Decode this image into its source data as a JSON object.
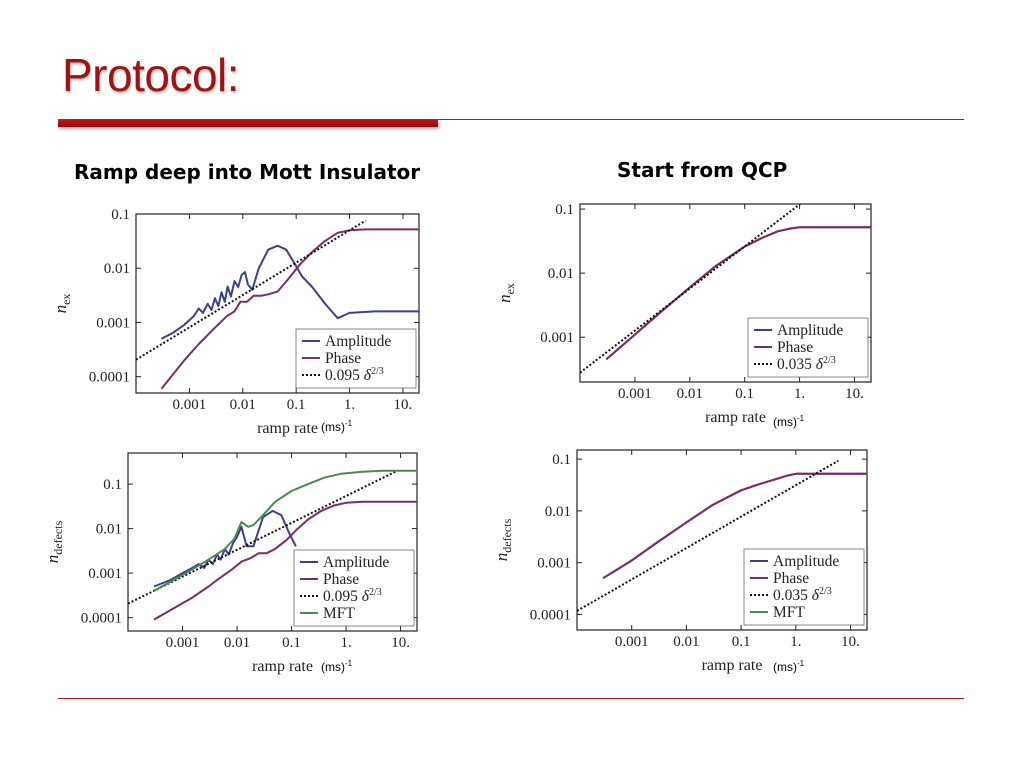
{
  "slide": {
    "title": "Protocol:"
  },
  "columns": [
    {
      "heading": "Ramp deep into Mott Insulator"
    },
    {
      "heading": "Start from QCP"
    }
  ],
  "unit_label": {
    "base": "(ms)",
    "exp": "-1"
  },
  "colors": {
    "amplitude": "#3c3f8e",
    "phase": "#7a2c64",
    "mft": "#4a8a52",
    "fit": "#111111",
    "accent": "#9b1515"
  },
  "chart_data": [
    {
      "id": "ramp-deep-nex",
      "type": "line",
      "xlabel": "ramp rate",
      "ylabel": "n_ex",
      "ylabel_main": "n",
      "ylabel_sub": "ex",
      "xscale": "log",
      "yscale": "log",
      "xlim": [
        0.0001,
        20
      ],
      "ylim": [
        5e-05,
        0.1
      ],
      "xticks": [
        0.001,
        0.01,
        0.1,
        1,
        10
      ],
      "xticklabels": [
        "0.001",
        "0.01",
        "0.1",
        "1.",
        "10."
      ],
      "yticks": [
        0.0001,
        0.001,
        0.01,
        0.1
      ],
      "yticklabels": [
        "0.0001",
        "0.001",
        "0.01",
        "0.1"
      ],
      "legend_position": "bottom-right",
      "series": [
        {
          "name": "Amplitude",
          "color_key": "amplitude",
          "x": [
            0.0003,
            0.0005,
            0.0008,
            0.0012,
            0.0015,
            0.0018,
            0.0022,
            0.0026,
            0.003,
            0.0035,
            0.004,
            0.0046,
            0.0052,
            0.006,
            0.007,
            0.0082,
            0.0095,
            0.011,
            0.0125,
            0.015,
            0.02,
            0.03,
            0.045,
            0.065,
            0.09,
            0.13,
            0.2,
            0.35,
            0.6,
            1.0,
            3,
            20
          ],
          "y": [
            0.0005,
            0.00065,
            0.0009,
            0.0013,
            0.0018,
            0.0015,
            0.0022,
            0.0017,
            0.0028,
            0.002,
            0.0036,
            0.0024,
            0.0046,
            0.003,
            0.0058,
            0.0045,
            0.0075,
            0.0085,
            0.005,
            0.004,
            0.01,
            0.022,
            0.026,
            0.022,
            0.013,
            0.007,
            0.0045,
            0.0022,
            0.0012,
            0.0015,
            0.0016,
            0.0016
          ]
        },
        {
          "name": "Phase",
          "color_key": "phase",
          "x": [
            0.0003,
            0.0008,
            0.0015,
            0.003,
            0.005,
            0.007,
            0.009,
            0.012,
            0.016,
            0.022,
            0.03,
            0.045,
            0.07,
            0.12,
            0.2,
            0.35,
            0.6,
            1,
            2,
            5,
            20
          ],
          "y": [
            6e-05,
            0.0002,
            0.0004,
            0.0008,
            0.0013,
            0.0016,
            0.0024,
            0.0024,
            0.0031,
            0.0031,
            0.0033,
            0.0037,
            0.0062,
            0.012,
            0.02,
            0.032,
            0.045,
            0.05,
            0.052,
            0.052,
            0.052
          ]
        },
        {
          "name": "0.095 δ^2/3",
          "label_num": "0.095 ",
          "label_var": "δ",
          "label_sup": "2/3",
          "color_key": "fit",
          "dash": "2,2",
          "x": [
            0.0001,
            2
          ],
          "y": [
            0.000206,
            0.0754
          ]
        }
      ]
    },
    {
      "id": "start-qcp-nex",
      "type": "line",
      "xlabel": "ramp rate",
      "ylabel": "n_ex",
      "ylabel_main": "n",
      "ylabel_sub": "ex",
      "xscale": "log",
      "yscale": "log",
      "xlim": [
        0.0001,
        20
      ],
      "ylim": [
        0.0002,
        0.12
      ],
      "xticks": [
        0.001,
        0.01,
        0.1,
        1,
        10
      ],
      "xticklabels": [
        "0.001",
        "0.01",
        "0.1",
        "1.",
        "10."
      ],
      "yticks": [
        0.001,
        0.01,
        0.1
      ],
      "yticklabels": [
        "0.001",
        "0.01",
        "0.1"
      ],
      "legend_position": "bottom-right",
      "series": [
        {
          "name": "Amplitude",
          "color_key": "amplitude",
          "x": [
            0.0003,
            0.001,
            0.003,
            0.01,
            0.03,
            0.1,
            0.2,
            0.4,
            0.7,
            1,
            2,
            20
          ],
          "y": [
            0.00045,
            0.0011,
            0.0025,
            0.006,
            0.013,
            0.026,
            0.035,
            0.045,
            0.05,
            0.052,
            0.052,
            0.052
          ]
        },
        {
          "name": "Phase",
          "color_key": "phase",
          "x": [
            0.0003,
            0.001,
            0.003,
            0.01,
            0.03,
            0.1,
            0.2,
            0.4,
            0.7,
            1,
            2,
            20
          ],
          "y": [
            0.00045,
            0.0011,
            0.0025,
            0.006,
            0.013,
            0.026,
            0.035,
            0.045,
            0.05,
            0.052,
            0.052,
            0.052
          ]
        },
        {
          "name": "0.035 δ^2/3",
          "label_num": "0.035 ",
          "label_var": "δ",
          "label_sup": "2/3",
          "color_key": "fit",
          "dash": "2,2",
          "x": [
            0.0001,
            1.4
          ],
          "y": [
            0.000279,
            0.148
          ]
        }
      ]
    },
    {
      "id": "ramp-deep-ndefects",
      "type": "line",
      "xlabel": "ramp rate",
      "ylabel": "n_defects",
      "ylabel_main": "n",
      "ylabel_sub": "defects",
      "xscale": "log",
      "yscale": "log",
      "xlim": [
        0.0001,
        20
      ],
      "ylim": [
        5e-05,
        0.5
      ],
      "xticks": [
        0.001,
        0.01,
        0.1,
        1,
        10
      ],
      "xticklabels": [
        "0.001",
        "0.01",
        "0.1",
        "1.",
        "10."
      ],
      "yticks": [
        0.0001,
        0.001,
        0.01,
        0.1
      ],
      "yticklabels": [
        "0.0001",
        "0.001",
        "0.01",
        "0.1"
      ],
      "legend_position": "bottom-right",
      "series": [
        {
          "name": "Amplitude",
          "color_key": "amplitude",
          "x": [
            0.0003,
            0.0006,
            0.001,
            0.0015,
            0.002,
            0.0025,
            0.003,
            0.0036,
            0.0043,
            0.005,
            0.006,
            0.007,
            0.0085,
            0.01,
            0.012,
            0.015,
            0.02,
            0.03,
            0.045,
            0.065,
            0.09,
            0.12
          ],
          "y": [
            0.0005,
            0.0007,
            0.001,
            0.0013,
            0.0016,
            0.0013,
            0.002,
            0.0016,
            0.0026,
            0.002,
            0.0035,
            0.0026,
            0.0048,
            0.0065,
            0.011,
            0.004,
            0.004,
            0.018,
            0.025,
            0.02,
            0.008,
            0.004
          ]
        },
        {
          "name": "Phase",
          "color_key": "phase",
          "x": [
            0.0003,
            0.0008,
            0.0015,
            0.003,
            0.005,
            0.008,
            0.012,
            0.018,
            0.025,
            0.035,
            0.05,
            0.08,
            0.13,
            0.2,
            0.35,
            0.6,
            1,
            2,
            5,
            20
          ],
          "y": [
            9e-05,
            0.00018,
            0.00028,
            0.0005,
            0.0008,
            0.0012,
            0.0018,
            0.0022,
            0.0028,
            0.0028,
            0.0035,
            0.0055,
            0.01,
            0.016,
            0.025,
            0.033,
            0.038,
            0.04,
            0.04,
            0.04
          ]
        },
        {
          "name": "0.095 δ^2/3",
          "label_num": "0.095 ",
          "label_var": "δ",
          "label_sup": "2/3",
          "color_key": "fit",
          "dash": "2,2",
          "x": [
            0.0001,
            8
          ],
          "y": [
            0.000206,
            0.19
          ]
        },
        {
          "name": "MFT",
          "color_key": "mft",
          "x": [
            0.0003,
            0.001,
            0.003,
            0.006,
            0.009,
            0.012,
            0.016,
            0.02,
            0.03,
            0.05,
            0.1,
            0.2,
            0.4,
            0.8,
            2,
            5,
            20
          ],
          "y": [
            0.0004,
            0.0009,
            0.002,
            0.0035,
            0.006,
            0.014,
            0.011,
            0.012,
            0.02,
            0.04,
            0.07,
            0.1,
            0.14,
            0.17,
            0.19,
            0.2,
            0.2
          ]
        }
      ]
    },
    {
      "id": "start-qcp-ndefects",
      "type": "line",
      "xlabel": "ramp rate",
      "ylabel": "n_defects",
      "ylabel_main": "n",
      "ylabel_sub": "defects",
      "xscale": "log",
      "yscale": "log",
      "xlim": [
        0.0001,
        20
      ],
      "ylim": [
        5e-05,
        0.15
      ],
      "xticks": [
        0.001,
        0.01,
        0.1,
        1,
        10
      ],
      "xticklabels": [
        "0.001",
        "0.01",
        "0.1",
        "1.",
        "10."
      ],
      "yticks": [
        0.0001,
        0.001,
        0.01,
        0.1
      ],
      "yticklabels": [
        "0.0001",
        "0.001",
        "0.01",
        "0.1"
      ],
      "legend_position": "bottom-right",
      "series": [
        {
          "name": "Amplitude",
          "color_key": "amplitude",
          "x": [
            0.0003,
            0.001,
            0.003,
            0.01,
            0.03,
            0.1,
            0.2,
            0.4,
            0.7,
            1,
            2,
            20
          ],
          "y": [
            0.0005,
            0.0011,
            0.0025,
            0.006,
            0.013,
            0.025,
            0.032,
            0.04,
            0.048,
            0.052,
            0.052,
            0.052
          ]
        },
        {
          "name": "Phase",
          "color_key": "phase",
          "x": [
            0.0003,
            0.001,
            0.003,
            0.01,
            0.03,
            0.1,
            0.2,
            0.4,
            0.7,
            1,
            2,
            20
          ],
          "y": [
            0.0005,
            0.0011,
            0.0025,
            0.006,
            0.013,
            0.025,
            0.032,
            0.04,
            0.048,
            0.052,
            0.052,
            0.052
          ]
        },
        {
          "name": "0.035 δ^2/3",
          "label_num": "0.035 ",
          "label_var": "δ",
          "label_sup": "2/3",
          "color_key": "fit",
          "dash": "2,2",
          "x": [
            0.0001,
            6
          ],
          "y": [
            0.000117,
            0.093
          ]
        },
        {
          "name": "MFT",
          "color_key": "mft",
          "hidden": true,
          "x": [],
          "y": []
        }
      ]
    }
  ]
}
